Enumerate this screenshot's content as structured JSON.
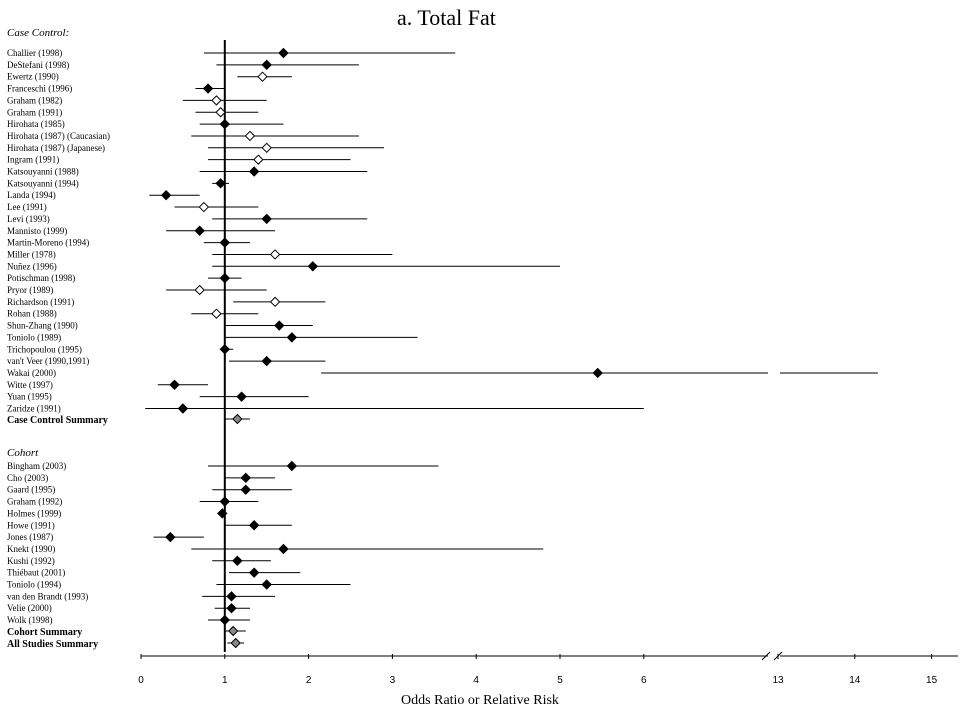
{
  "chart_data": {
    "type": "forest",
    "title": "a.  Total Fat",
    "xlabel": "Odds Ratio or Relative Risk",
    "reference_line": 1,
    "x_ticks": [
      "0",
      "1",
      "2",
      "3",
      "4",
      "5",
      "6",
      "13",
      "14",
      "15"
    ],
    "axis_break": "between 6 and 13",
    "marker_legend": {
      "filled-diamond": "statistically significant / primary",
      "open-diamond": "alternate estimate",
      "gray-diamond": "summary"
    },
    "sections": [
      {
        "label": "Case Control:",
        "studies": [
          {
            "name": "Challier (1998)",
            "or": 1.7,
            "lo": 0.75,
            "hi": 3.75,
            "marker": "filled"
          },
          {
            "name": "DeStefani (1998)",
            "or": 1.5,
            "lo": 0.9,
            "hi": 2.6,
            "marker": "filled"
          },
          {
            "name": "Ewertz (1990)",
            "or": 1.45,
            "lo": 1.15,
            "hi": 1.8,
            "marker": "open"
          },
          {
            "name": "Franceschi (1996)",
            "or": 0.8,
            "lo": 0.65,
            "hi": 1.0,
            "marker": "filled"
          },
          {
            "name": "Graham (1982)",
            "or": 0.9,
            "lo": 0.5,
            "hi": 1.5,
            "marker": "open"
          },
          {
            "name": "Graham (1991)",
            "or": 0.95,
            "lo": 0.65,
            "hi": 1.4,
            "marker": "open"
          },
          {
            "name": "Hirohata (1985)",
            "or": 1.0,
            "lo": 0.7,
            "hi": 1.7,
            "marker": "filled"
          },
          {
            "name": "Hirohata (1987) (Caucasian)",
            "or": 1.3,
            "lo": 0.6,
            "hi": 2.6,
            "marker": "open"
          },
          {
            "name": "Hirohata (1987) (Japanese)",
            "or": 1.5,
            "lo": 0.8,
            "hi": 2.9,
            "marker": "open"
          },
          {
            "name": "Ingram (1991)",
            "or": 1.4,
            "lo": 0.8,
            "hi": 2.5,
            "marker": "open"
          },
          {
            "name": "Katsouyanni (1988)",
            "or": 1.35,
            "lo": 0.7,
            "hi": 2.7,
            "marker": "filled"
          },
          {
            "name": "Katsouyanni (1994)",
            "or": 0.95,
            "lo": 0.85,
            "hi": 1.05,
            "marker": "filled"
          },
          {
            "name": "Landa (1994)",
            "or": 0.3,
            "lo": 0.1,
            "hi": 0.7,
            "marker": "filled"
          },
          {
            "name": "Lee (1991)",
            "or": 0.75,
            "lo": 0.4,
            "hi": 1.4,
            "marker": "open"
          },
          {
            "name": "Levi (1993)",
            "or": 1.5,
            "lo": 0.85,
            "hi": 2.7,
            "marker": "filled"
          },
          {
            "name": "Mannisto (1999)",
            "or": 0.7,
            "lo": 0.3,
            "hi": 1.6,
            "marker": "filled"
          },
          {
            "name": "Martin-Moreno (1994)",
            "or": 1.0,
            "lo": 0.75,
            "hi": 1.3,
            "marker": "filled"
          },
          {
            "name": "Miller (1978)",
            "or": 1.6,
            "lo": 0.85,
            "hi": 3.0,
            "marker": "open"
          },
          {
            "name": "Nuñez (1996)",
            "or": 2.05,
            "lo": 0.85,
            "hi": 5.0,
            "marker": "filled"
          },
          {
            "name": "Potischman (1998)",
            "or": 1.0,
            "lo": 0.8,
            "hi": 1.2,
            "marker": "filled"
          },
          {
            "name": "Pryor (1989)",
            "or": 0.7,
            "lo": 0.3,
            "hi": 1.5,
            "marker": "open"
          },
          {
            "name": "Richardson (1991)",
            "or": 1.6,
            "lo": 1.1,
            "hi": 2.2,
            "marker": "open"
          },
          {
            "name": "Rohan (1988)",
            "or": 0.9,
            "lo": 0.6,
            "hi": 1.4,
            "marker": "open"
          },
          {
            "name": "Shun-Zhang (1990)",
            "or": 1.65,
            "lo": 1.0,
            "hi": 2.05,
            "marker": "filled"
          },
          {
            "name": "Toniolo (1989)",
            "or": 1.8,
            "lo": 1.0,
            "hi": 3.3,
            "marker": "filled"
          },
          {
            "name": "Trichopoulou (1995)",
            "or": 1.0,
            "lo": 0.95,
            "hi": 1.1,
            "marker": "filled"
          },
          {
            "name": "van't Veer (1990,1991)",
            "or": 1.5,
            "lo": 1.05,
            "hi": 2.2,
            "marker": "filled"
          },
          {
            "name": "Wakai (2000)",
            "or": 5.45,
            "lo": 2.15,
            "hi": 14.3,
            "marker": "filled"
          },
          {
            "name": "Witte (1997)",
            "or": 0.4,
            "lo": 0.2,
            "hi": 0.8,
            "marker": "filled"
          },
          {
            "name": "Yuan (1995)",
            "or": 1.2,
            "lo": 0.7,
            "hi": 2.0,
            "marker": "filled"
          },
          {
            "name": "Zaridze (1991)",
            "or": 0.5,
            "lo": 0.05,
            "hi": 6.0,
            "marker": "filled"
          }
        ],
        "summary": {
          "name": "Case Control Summary",
          "or": 1.15,
          "lo": 1.0,
          "hi": 1.3
        }
      },
      {
        "label": "Cohort",
        "studies": [
          {
            "name": "Bingham (2003)",
            "or": 1.8,
            "lo": 0.8,
            "hi": 3.55,
            "marker": "filled"
          },
          {
            "name": "Cho (2003)",
            "or": 1.25,
            "lo": 1.0,
            "hi": 1.6,
            "marker": "filled"
          },
          {
            "name": "Gaard (1995)",
            "or": 1.25,
            "lo": 0.85,
            "hi": 1.8,
            "marker": "filled"
          },
          {
            "name": "Graham (1992)",
            "or": 1.0,
            "lo": 0.7,
            "hi": 1.4,
            "marker": "filled"
          },
          {
            "name": "Holmes (1999)",
            "or": 0.97,
            "lo": 0.94,
            "hi": 1.02,
            "marker": "filled"
          },
          {
            "name": "Howe (1991)",
            "or": 1.35,
            "lo": 1.0,
            "hi": 1.8,
            "marker": "filled"
          },
          {
            "name": "Jones (1987)",
            "or": 0.35,
            "lo": 0.15,
            "hi": 0.75,
            "marker": "filled"
          },
          {
            "name": "Knekt (1990)",
            "or": 1.7,
            "lo": 0.6,
            "hi": 4.8,
            "marker": "filled"
          },
          {
            "name": "Kushi (1992)",
            "or": 1.15,
            "lo": 0.85,
            "hi": 1.55,
            "marker": "filled"
          },
          {
            "name": "Thiébaut (2001)",
            "or": 1.35,
            "lo": 1.05,
            "hi": 1.9,
            "marker": "filled"
          },
          {
            "name": "Toniolo (1994)",
            "or": 1.5,
            "lo": 0.9,
            "hi": 2.5,
            "marker": "filled"
          },
          {
            "name": "van den Brandt (1993)",
            "or": 1.08,
            "lo": 0.73,
            "hi": 1.6,
            "marker": "filled"
          },
          {
            "name": "Velie (2000)",
            "or": 1.08,
            "lo": 0.88,
            "hi": 1.3,
            "marker": "filled"
          },
          {
            "name": "Wolk (1998)",
            "or": 1.0,
            "lo": 0.8,
            "hi": 1.3,
            "marker": "filled"
          }
        ],
        "summary": {
          "name": "Cohort Summary",
          "or": 1.1,
          "lo": 1.0,
          "hi": 1.25
        }
      }
    ],
    "overall": {
      "name": "All Studies Summary",
      "or": 1.13,
      "lo": 1.03,
      "hi": 1.23
    }
  }
}
